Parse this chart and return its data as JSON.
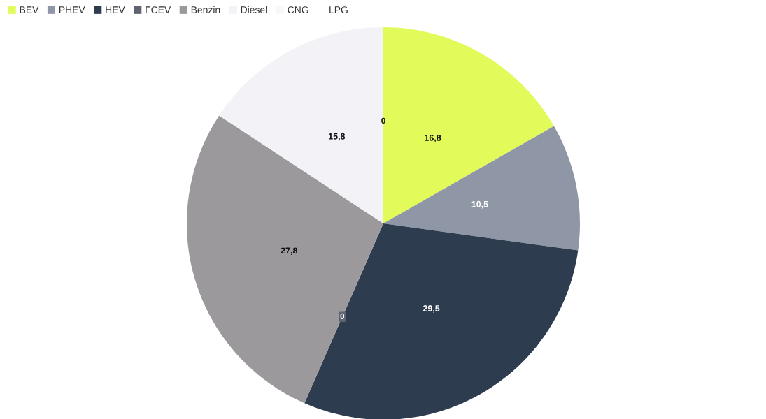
{
  "chart_data": {
    "type": "pie",
    "categories": [
      "BEV",
      "PHEV",
      "HEV",
      "FCEV",
      "Benzin",
      "Diesel",
      "CNG",
      "LPG"
    ],
    "values": [
      16.8,
      10.5,
      29.5,
      0,
      27.8,
      15.8,
      0,
      0
    ],
    "colors": [
      "#e2fb5b",
      "#8f96a6",
      "#2e3c50",
      "#5f6270",
      "#9b999c",
      "#f3f2f6",
      "#f8f8fa",
      "#ffffff"
    ],
    "value_labels": [
      "16,8",
      "10,5",
      "29,5",
      "0",
      "27,8",
      "15,8",
      "0",
      null
    ],
    "legend": "top left"
  }
}
